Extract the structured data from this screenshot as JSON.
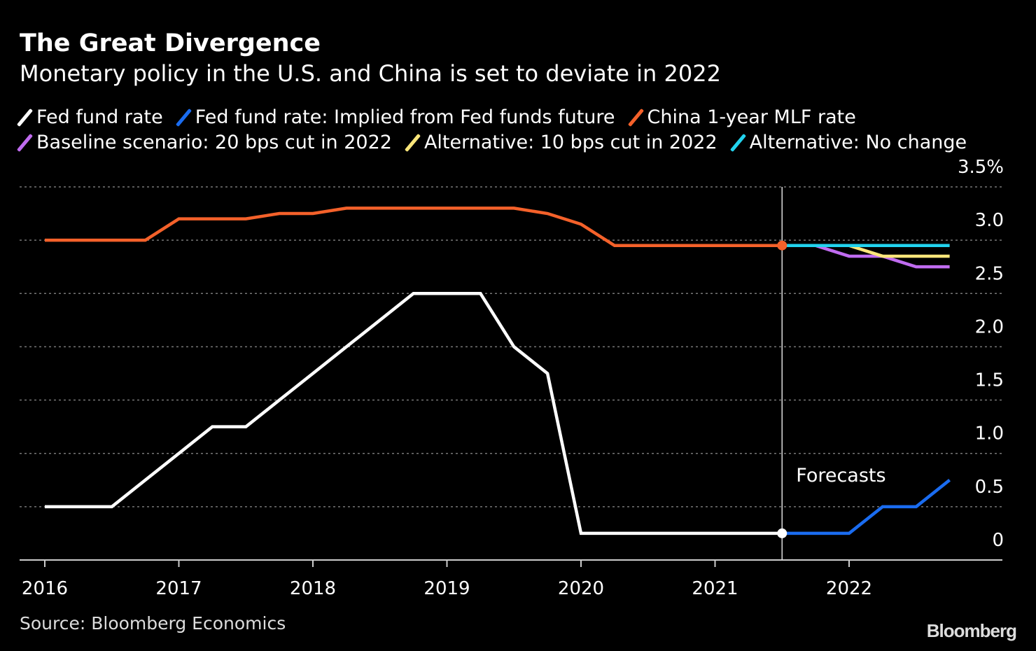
{
  "title": "The Great Divergence",
  "subtitle": "Monetary policy in the U.S. and China is set to deviate in 2022",
  "source": "Source: Bloomberg Economics",
  "logo": "Bloomberg",
  "chart_data": {
    "type": "line",
    "y_unit": "%",
    "ylim": [
      0,
      3.5
    ],
    "yticks": [
      "0",
      "0.5",
      "1.0",
      "1.5",
      "2.0",
      "2.5",
      "3.0",
      "3.5%"
    ],
    "xticks": [
      "2016",
      "2017",
      "2018",
      "2019",
      "2020",
      "2021",
      "2022"
    ],
    "xlim": [
      2016,
      2022.9
    ],
    "grid": true,
    "legend_position": "top",
    "annotation": {
      "label": "Forecasts",
      "x": 2021.5
    },
    "series": [
      {
        "name": "Fed fund rate",
        "color": "#ffffff",
        "points": [
          [
            2016,
            0.5
          ],
          [
            2016.25,
            0.5
          ],
          [
            2016.5,
            0.5
          ],
          [
            2016.75,
            0.75
          ],
          [
            2017,
            1.0
          ],
          [
            2017.25,
            1.25
          ],
          [
            2017.5,
            1.25
          ],
          [
            2017.75,
            1.5
          ],
          [
            2018,
            1.75
          ],
          [
            2018.25,
            2.0
          ],
          [
            2018.5,
            2.25
          ],
          [
            2018.75,
            2.5
          ],
          [
            2019,
            2.5
          ],
          [
            2019.25,
            2.5
          ],
          [
            2019.5,
            2.0
          ],
          [
            2019.75,
            1.75
          ],
          [
            2020,
            0.25
          ],
          [
            2020.25,
            0.25
          ],
          [
            2020.5,
            0.25
          ],
          [
            2020.75,
            0.25
          ],
          [
            2021,
            0.25
          ],
          [
            2021.25,
            0.25
          ],
          [
            2021.5,
            0.25
          ]
        ]
      },
      {
        "name": "Fed fund rate: Implied from Fed funds future",
        "color": "#1a6cf0",
        "points": [
          [
            2021.5,
            0.25
          ],
          [
            2021.75,
            0.25
          ],
          [
            2022,
            0.25
          ],
          [
            2022.25,
            0.5
          ],
          [
            2022.5,
            0.5
          ],
          [
            2022.75,
            0.75
          ]
        ]
      },
      {
        "name": "China 1-year MLF rate",
        "color": "#f4612a",
        "points": [
          [
            2016,
            3.0
          ],
          [
            2016.25,
            3.0
          ],
          [
            2016.5,
            3.0
          ],
          [
            2016.75,
            3.0
          ],
          [
            2017,
            3.2
          ],
          [
            2017.25,
            3.2
          ],
          [
            2017.5,
            3.2
          ],
          [
            2017.75,
            3.25
          ],
          [
            2018,
            3.25
          ],
          [
            2018.25,
            3.3
          ],
          [
            2018.5,
            3.3
          ],
          [
            2018.75,
            3.3
          ],
          [
            2019,
            3.3
          ],
          [
            2019.25,
            3.3
          ],
          [
            2019.5,
            3.3
          ],
          [
            2019.75,
            3.25
          ],
          [
            2020,
            3.15
          ],
          [
            2020.25,
            2.95
          ],
          [
            2020.5,
            2.95
          ],
          [
            2020.75,
            2.95
          ],
          [
            2021,
            2.95
          ],
          [
            2021.25,
            2.95
          ],
          [
            2021.5,
            2.95
          ]
        ]
      },
      {
        "name": "Baseline scenario: 20 bps cut in 2022",
        "color": "#c06cf0",
        "points": [
          [
            2021.5,
            2.95
          ],
          [
            2021.75,
            2.95
          ],
          [
            2022,
            2.85
          ],
          [
            2022.25,
            2.85
          ],
          [
            2022.5,
            2.75
          ],
          [
            2022.75,
            2.75
          ]
        ]
      },
      {
        "name": "Alternative: 10 bps cut in 2022",
        "color": "#fbe67a",
        "points": [
          [
            2021.5,
            2.95
          ],
          [
            2021.75,
            2.95
          ],
          [
            2022,
            2.95
          ],
          [
            2022.25,
            2.85
          ],
          [
            2022.5,
            2.85
          ],
          [
            2022.75,
            2.85
          ]
        ]
      },
      {
        "name": "Alternative: No change",
        "color": "#22d3ee",
        "points": [
          [
            2021.5,
            2.95
          ],
          [
            2021.75,
            2.95
          ],
          [
            2022,
            2.95
          ],
          [
            2022.25,
            2.95
          ],
          [
            2022.5,
            2.95
          ],
          [
            2022.75,
            2.95
          ]
        ]
      }
    ]
  }
}
